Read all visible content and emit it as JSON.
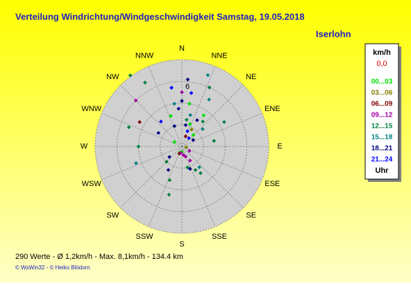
{
  "chart_data": {
    "type": "polar-scatter",
    "title": "Verteilung Windrichtung/Windgeschwindigkeit  Samstag, 19.05.2018",
    "subtitle": "Iserlohn",
    "directions": [
      "N",
      "NNE",
      "NE",
      "ENE",
      "E",
      "ESE",
      "SE",
      "SSE",
      "S",
      "SSW",
      "SW",
      "WSW",
      "W",
      "WNW",
      "NW",
      "NNW"
    ],
    "rlim": [
      0,
      8
    ],
    "rticks": [
      2,
      4,
      6,
      8
    ],
    "rtick_labels": [
      null,
      null,
      "6",
      null
    ],
    "legend_title": "km/h",
    "calm_label": "0,0",
    "legend_footer": "Uhr",
    "series": [
      {
        "name": "00...03",
        "color": "#00e000",
        "theta": [
          20,
          35,
          10,
          300,
          180,
          200,
          45,
          340
        ],
        "values": [
          2.2,
          3.5,
          4,
          0.8,
          0.5,
          0.6,
          1.5,
          3
        ]
      },
      {
        "name": "03...06",
        "color": "#808000",
        "theta": [
          100,
          30
        ],
        "values": [
          0.4,
          1.8
        ]
      },
      {
        "name": "06...09",
        "color": "#800000",
        "theta": [
          300,
          200,
          20
        ],
        "values": [
          4.5,
          0.7,
          1
        ]
      },
      {
        "name": "09...12",
        "color": "#a000a0",
        "theta": [
          315,
          160,
          170,
          150,
          190,
          120,
          0
        ],
        "values": [
          6,
          1,
          0.8,
          1.5,
          0.6,
          0.8,
          5
        ]
      },
      {
        "name": "12...15",
        "color": "#008040",
        "theta": [
          324,
          330,
          350,
          25,
          60,
          145,
          150,
          165,
          270,
          290,
          40,
          10,
          200,
          195,
          225,
          80
        ],
        "values": [
          8.1,
          6.8,
          5.5,
          6,
          4.5,
          3,
          2.5,
          2,
          4,
          5.2,
          3,
          2.5,
          3.3,
          4.6,
          2,
          3
        ]
      },
      {
        "name": "15...18",
        "color": "#008080",
        "theta": [
          20,
          30,
          15,
          50,
          250,
          140,
          350
        ],
        "values": [
          7,
          5,
          3,
          2.5,
          4.5,
          2.5,
          4
        ]
      },
      {
        "name": "18...21",
        "color": "#000080",
        "theta": [
          0,
          5,
          355,
          10,
          30,
          340,
          160,
          210,
          230,
          300,
          60
        ],
        "values": [
          4.2,
          6.2,
          3.5,
          2,
          2.8,
          2,
          2.2,
          2.5,
          1.5,
          2.5,
          1.2
        ]
      },
      {
        "name": "21...24",
        "color": "#0000ff",
        "theta": [
          10,
          350,
          20,
          320,
          40
        ],
        "values": [
          5,
          5.5,
          1.5,
          3,
          1
        ]
      }
    ],
    "footer": "290 Werte   -   Ø 1,2km/h   -   Max. 8,1km/h   -   134.4 km",
    "copyright": "© WsWin32  -  © Heiko Blödorn"
  }
}
